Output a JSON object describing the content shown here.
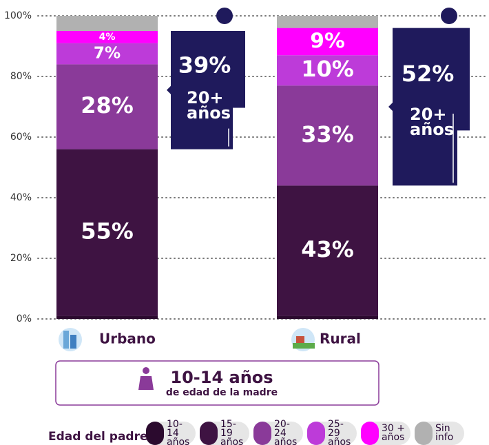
{
  "chart_data": {
    "type": "bar",
    "stacked": true,
    "categories": [
      "Urbano",
      "Rural"
    ],
    "series": [
      {
        "name": "10-14 años",
        "color": "#2b0a2e",
        "values": [
          1,
          1
        ],
        "value_labels": [
          null,
          null
        ]
      },
      {
        "name": "15-19 años",
        "color": "#3e1342",
        "values": [
          55,
          43
        ],
        "value_labels": [
          "55%",
          "43%"
        ]
      },
      {
        "name": "20-24 años",
        "color": "#8a3a99",
        "values": [
          28,
          33
        ],
        "value_labels": [
          "28%",
          "33%"
        ]
      },
      {
        "name": "25-29 años",
        "color": "#bd3bd9",
        "values": [
          7,
          10
        ],
        "value_labels": [
          "7%",
          "10%"
        ]
      },
      {
        "name": "30 + años",
        "color": "#ff00ff",
        "values": [
          4,
          9
        ],
        "value_labels": [
          "4%",
          "9%"
        ]
      },
      {
        "name": "Sin info",
        "color": "#b1b1b1",
        "values": [
          5,
          4
        ],
        "value_labels": [
          null,
          null
        ]
      }
    ],
    "side_labels": [
      {
        "total": "39%",
        "label": "20+ años"
      },
      {
        "total": "52%",
        "label": "20+ años"
      }
    ],
    "ylim": [
      0,
      100
    ],
    "yticks": [
      {
        "value": 0,
        "label": "0%"
      },
      {
        "value": 20,
        "label": "20%"
      },
      {
        "value": 40,
        "label": "40%"
      },
      {
        "value": 60,
        "label": "60%"
      },
      {
        "value": 80,
        "label": "80%"
      },
      {
        "value": 100,
        "label": "100%"
      }
    ],
    "grid": true,
    "legend_title": "Edad del padre",
    "note_title": "10-14 años",
    "note_subtitle": "de edad de la madre"
  }
}
